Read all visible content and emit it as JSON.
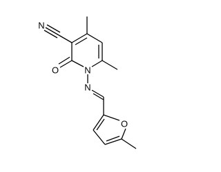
{
  "atoms": [
    {
      "label": "N"
    },
    {
      "label": "O"
    },
    {
      "label": "N"
    },
    {
      "label": "N"
    },
    {
      "label": "O"
    }
  ]
}
